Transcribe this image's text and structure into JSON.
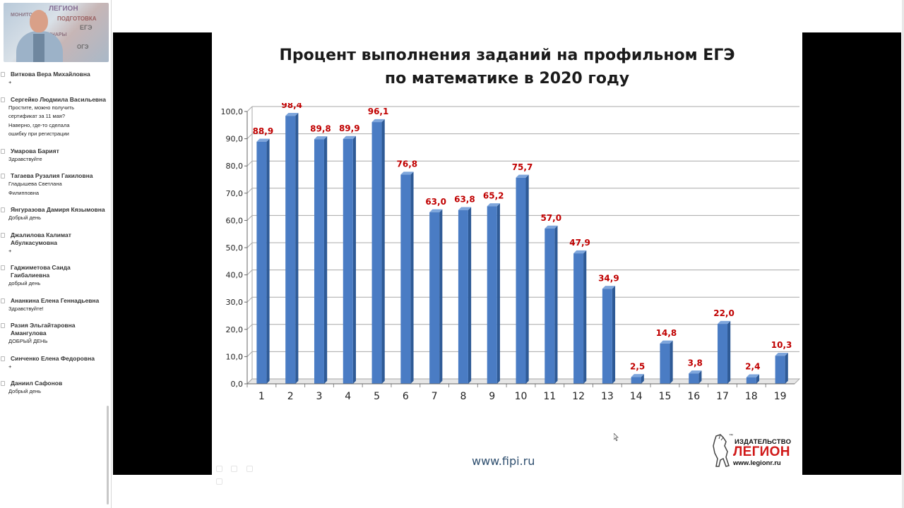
{
  "webcam": {
    "wall_words": [
      "ЛЕГИОН",
      "МОНИТОРИНГ",
      "ПОДГОТОВКА",
      "ВЕБИНАРЫ",
      "ЕГЭ",
      "ОГЭ"
    ]
  },
  "chat": {
    "messages": [
      {
        "name": "Виткова Вера Михайловна",
        "lines": [
          "+"
        ]
      },
      {
        "name": "Сергейко Людмила Васильевна",
        "lines": [
          "Простите, можно получить",
          "сертификат за 11 мая?",
          "Наверно, где-то сделала",
          "ошибку при регистрации"
        ]
      },
      {
        "name": "Умарова Барият",
        "lines": [
          "Здравствуйте"
        ]
      },
      {
        "name": "Тагаева Рузалия Гакиловна",
        "lines": [
          "Гладышева Светлана",
          "Филипповна"
        ]
      },
      {
        "name": "Янгуразова Дамиря Кязымовна",
        "lines": [
          "Добрый день"
        ]
      },
      {
        "name": "Джалилова Калимат Абулкасумовна",
        "lines": [
          "+"
        ]
      },
      {
        "name": "Гаджиметова Саида Гаибалиевна",
        "lines": [
          "добрый день"
        ]
      },
      {
        "name": "Ананкина Елена Геннадьевна",
        "lines": [
          "Здравствуйте!"
        ]
      },
      {
        "name": "Разия Эльгайтаровна Амангулова",
        "lines": [
          "ДОБРЫЙ ДЕНЬ"
        ]
      },
      {
        "name": "Синченко Елена Федоровна",
        "lines": [
          "+"
        ]
      },
      {
        "name": "Даниил Сафонов",
        "lines": [
          "Добрый день"
        ]
      }
    ]
  },
  "slide": {
    "title_line1": "Процент выполнения заданий на профильном ЕГЭ",
    "title_line2": "по математике в 2020 году",
    "source_url": "www.fipi.ru",
    "logo": {
      "tm": "™",
      "publisher": "ИЗДАТЕЛЬСТВО",
      "name": "ЛЕГИОН",
      "site": "www.legionr.ru"
    }
  },
  "chart_data": {
    "type": "bar",
    "title": "Процент выполнения заданий на профильном ЕГЭ по математике в 2020 году",
    "categories": [
      "1",
      "2",
      "3",
      "4",
      "5",
      "6",
      "7",
      "8",
      "9",
      "10",
      "11",
      "12",
      "13",
      "14",
      "15",
      "16",
      "17",
      "18",
      "19"
    ],
    "values": [
      88.9,
      98.4,
      89.8,
      89.9,
      96.1,
      76.8,
      63.0,
      63.8,
      65.2,
      75.7,
      57.0,
      47.9,
      34.9,
      2.5,
      14.8,
      3.8,
      22.0,
      2.4,
      10.3
    ],
    "value_labels": [
      "88,9",
      "98,4",
      "89,8",
      "89,9",
      "96,1",
      "76,8",
      "63,0",
      "63,8",
      "65,2",
      "75,7",
      "57,0",
      "47,9",
      "34,9",
      "2,5",
      "14,8",
      "3,8",
      "22,0",
      "2,4",
      "10,3"
    ],
    "y_ticks": [
      "0,0",
      "10,0",
      "20,0",
      "30,0",
      "40,0",
      "50,0",
      "60,0",
      "70,0",
      "80,0",
      "90,0",
      "100,0"
    ],
    "ylim": [
      0,
      100
    ],
    "grid": true,
    "bar_color": "#4a7cc4",
    "label_color": "#c00000"
  }
}
